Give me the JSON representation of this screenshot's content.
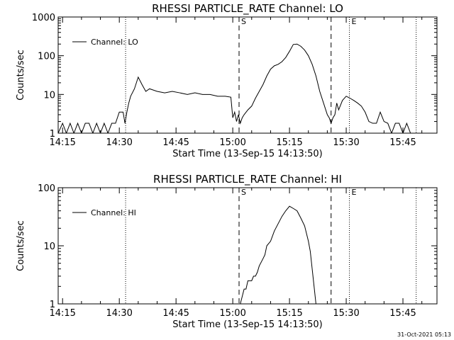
{
  "timestamp": "31-Oct-2021 05:13",
  "chart_data": [
    {
      "type": "line",
      "title": "RHESSI PARTICLE_RATE Channel: LO",
      "xlabel": "Start Time (13-Sep-15 14:13:50)",
      "ylabel": "Counts/sec",
      "y_scale": "log",
      "xlim": [
        "14:13:50",
        "15:54:00"
      ],
      "ylim": [
        1,
        1000
      ],
      "x_ticks": [
        "14:15",
        "14:30",
        "14:45",
        "15:00",
        "15:15",
        "15:30",
        "15:45"
      ],
      "y_ticks": [
        "1",
        "10",
        "100",
        "1000"
      ],
      "legend": {
        "label": "Channel: LO",
        "position": "top-left"
      },
      "markers": [
        {
          "time": "14:31:40",
          "style": "dotted",
          "label": ""
        },
        {
          "time": "15:01:40",
          "style": "dashed",
          "label": "S"
        },
        {
          "time": "15:26:00",
          "style": "dashed",
          "label": ""
        },
        {
          "time": "15:30:50",
          "style": "dotted",
          "label": "E"
        },
        {
          "time": "15:48:30",
          "style": "dotted",
          "label": ""
        }
      ],
      "series": [
        {
          "label": "Channel: LO",
          "x": [
            "14:13:50",
            "14:15:00",
            "14:16:00",
            "14:17:00",
            "14:18:00",
            "14:19:00",
            "14:20:00",
            "14:21:00",
            "14:22:00",
            "14:23:00",
            "14:24:00",
            "14:25:00",
            "14:26:00",
            "14:27:00",
            "14:28:00",
            "14:29:00",
            "14:30:00",
            "14:30:30",
            "14:31:00",
            "14:31:30",
            "14:32:00",
            "14:32:30",
            "14:33:00",
            "14:34:00",
            "14:35:00",
            "14:36:00",
            "14:37:00",
            "14:38:00",
            "14:40:00",
            "14:42:00",
            "14:44:00",
            "14:46:00",
            "14:48:00",
            "14:50:00",
            "14:52:00",
            "14:54:00",
            "14:56:00",
            "14:58:00",
            "14:59:30",
            "15:00:00",
            "15:00:30",
            "15:01:00",
            "15:01:30",
            "15:02:00",
            "15:02:30",
            "15:03:00",
            "15:04:00",
            "15:05:00",
            "15:06:00",
            "15:07:00",
            "15:08:00",
            "15:09:00",
            "15:10:00",
            "15:11:00",
            "15:12:00",
            "15:13:00",
            "15:14:00",
            "15:15:00",
            "15:16:00",
            "15:17:00",
            "15:18:00",
            "15:19:00",
            "15:20:00",
            "15:21:00",
            "15:22:00",
            "15:23:00",
            "15:24:00",
            "15:25:00",
            "15:25:30",
            "15:26:00",
            "15:26:30",
            "15:27:00",
            "15:27:30",
            "15:28:00",
            "15:29:00",
            "15:30:00",
            "15:31:00",
            "15:32:00",
            "15:33:00",
            "15:34:00",
            "15:35:00",
            "15:36:00",
            "15:37:00",
            "15:38:00",
            "15:39:00",
            "15:40:00",
            "15:41:00",
            "15:42:00",
            "15:43:00",
            "15:44:00",
            "15:45:00",
            "15:46:00",
            "15:47:00",
            "15:48:00",
            "15:49:00",
            "15:50:00",
            "15:51:00",
            "15:52:00",
            "15:53:00",
            "15:54:00"
          ],
          "y": [
            1,
            1.8,
            1,
            1.8,
            1,
            1.8,
            1,
            1.8,
            1.8,
            1,
            1.8,
            1,
            1.8,
            1,
            1.8,
            1.8,
            3.5,
            3.5,
            3.5,
            1.8,
            3.5,
            6,
            9,
            14,
            28,
            18,
            12,
            14,
            12,
            11,
            12,
            11,
            10,
            11,
            10,
            10,
            9,
            9,
            8.5,
            2.5,
            3.5,
            2,
            3,
            1.8,
            2.5,
            3,
            4,
            5,
            8,
            12,
            18,
            30,
            45,
            55,
            60,
            70,
            90,
            130,
            195,
            200,
            175,
            140,
            100,
            60,
            30,
            12,
            6,
            3,
            2.5,
            1.8,
            2.5,
            3,
            6,
            4,
            7,
            9,
            8,
            7,
            6,
            5,
            3.5,
            2,
            1.8,
            1.8,
            3.5,
            2,
            1.8,
            1,
            1.8,
            1.8,
            1,
            1.8,
            1,
            1,
            1,
            1,
            1,
            1,
            1,
            1
          ]
        }
      ]
    },
    {
      "type": "line",
      "title": "RHESSI PARTICLE_RATE Channel: HI",
      "xlabel": "Start Time (13-Sep-15 14:13:50)",
      "ylabel": "Counts/sec",
      "y_scale": "log",
      "xlim": [
        "14:13:50",
        "15:54:00"
      ],
      "ylim": [
        1,
        100
      ],
      "x_ticks": [
        "14:15",
        "14:30",
        "14:45",
        "15:00",
        "15:15",
        "15:30",
        "15:45"
      ],
      "y_ticks": [
        "1",
        "10",
        "100"
      ],
      "legend": {
        "label": "Channel: HI",
        "position": "top-left"
      },
      "markers": [
        {
          "time": "14:31:40",
          "style": "dotted",
          "label": ""
        },
        {
          "time": "15:01:40",
          "style": "dashed",
          "label": "S"
        },
        {
          "time": "15:26:00",
          "style": "dashed",
          "label": ""
        },
        {
          "time": "15:30:50",
          "style": "dotted",
          "label": "E"
        },
        {
          "time": "15:48:30",
          "style": "dotted",
          "label": ""
        }
      ],
      "series": [
        {
          "label": "Channel: HI",
          "x": [
            "15:02:00",
            "15:03:00",
            "15:03:30",
            "15:04:00",
            "15:05:00",
            "15:05:30",
            "15:06:00",
            "15:06:30",
            "15:07:00",
            "15:08:00",
            "15:08:30",
            "15:09:00",
            "15:10:00",
            "15:11:00",
            "15:12:00",
            "15:13:00",
            "15:14:00",
            "15:15:00",
            "15:16:00",
            "15:17:00",
            "15:18:00",
            "15:19:00",
            "15:20:00",
            "15:20:30",
            "15:21:00",
            "15:21:30",
            "15:22:00"
          ],
          "y": [
            1,
            1.8,
            1.8,
            2.5,
            2.5,
            3,
            3,
            3.5,
            4.5,
            6,
            7,
            10,
            12,
            18,
            24,
            32,
            40,
            48,
            44,
            40,
            30,
            22,
            12,
            8,
            4,
            2,
            1
          ]
        }
      ]
    }
  ]
}
